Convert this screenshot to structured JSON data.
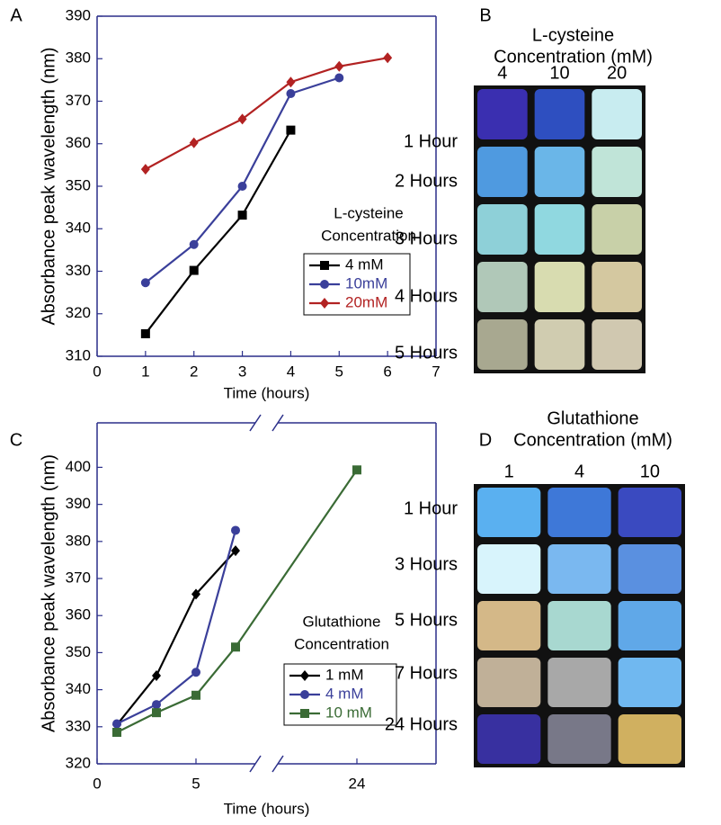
{
  "chart_data": [
    {
      "type": "line",
      "panel": "A",
      "xlabel": "Time (hours)",
      "ylabel": "Absorbance peak wavelength (nm)",
      "xlim": [
        0,
        7
      ],
      "xticks": [
        0,
        1,
        2,
        3,
        4,
        5,
        6,
        7
      ],
      "ylim": [
        310,
        390
      ],
      "yticks": [
        310,
        320,
        330,
        340,
        350,
        360,
        370,
        380,
        390
      ],
      "legend_title": [
        "L-cysteine",
        "Concentration"
      ],
      "series": [
        {
          "name": "4 mM",
          "color": "#000000",
          "marker": "square",
          "x": [
            1,
            2,
            3,
            4
          ],
          "values": [
            315.3,
            330.2,
            343.2,
            363.2
          ]
        },
        {
          "name": "10mM",
          "color": "#3a3f9a",
          "marker": "circle",
          "x": [
            1,
            2,
            3,
            4,
            5
          ],
          "values": [
            327.3,
            336.3,
            350,
            371.8,
            375.5
          ]
        },
        {
          "name": "20mM",
          "color": "#b22222",
          "marker": "diamond",
          "x": [
            1,
            2,
            3,
            4,
            5,
            6
          ],
          "values": [
            354,
            360.2,
            365.8,
            374.5,
            378.2,
            380.2
          ]
        }
      ]
    },
    {
      "type": "line",
      "panel": "C",
      "xlabel": "Time (hours)",
      "ylabel": "Absorbance peak wavelength (nm)",
      "xlim": [
        0,
        28
      ],
      "xbreak": [
        8,
        20
      ],
      "xticks": [
        0,
        5,
        24
      ],
      "ylim": [
        320,
        412
      ],
      "yticks": [
        320,
        330,
        340,
        350,
        360,
        370,
        380,
        390,
        400
      ],
      "legend_title": [
        "Glutathione",
        "Concentration"
      ],
      "series": [
        {
          "name": "1 mM",
          "color": "#000000",
          "marker": "diamond",
          "x": [
            1,
            3,
            5,
            7
          ],
          "values": [
            330.5,
            343.8,
            365.8,
            377.5
          ]
        },
        {
          "name": "4 mM",
          "color": "#3a3f9a",
          "marker": "circle",
          "x": [
            1,
            3,
            5,
            7
          ],
          "values": [
            330.8,
            336,
            344.7,
            383
          ]
        },
        {
          "name": "10 mM",
          "color": "#3a6b35",
          "marker": "square",
          "x": [
            1,
            3,
            5,
            7,
            24
          ],
          "values": [
            328.5,
            333.8,
            338.5,
            351.5,
            399.3
          ]
        }
      ]
    }
  ],
  "photos": [
    {
      "panel": "B",
      "title": [
        "L-cysteine",
        "Concentration (mM)"
      ],
      "columns": [
        "4",
        "10",
        "20"
      ],
      "rows": [
        "1 Hour",
        "2 Hours",
        "3 Hours",
        "4 Hours",
        "5 Hours"
      ]
    },
    {
      "panel": "D",
      "title": [
        "Glutathione",
        "Concentration (mM)"
      ],
      "columns": [
        "1",
        "4",
        "10"
      ],
      "rows": [
        "1 Hour",
        "3 Hours",
        "5 Hours",
        "7 Hours",
        "24 Hours"
      ]
    }
  ]
}
